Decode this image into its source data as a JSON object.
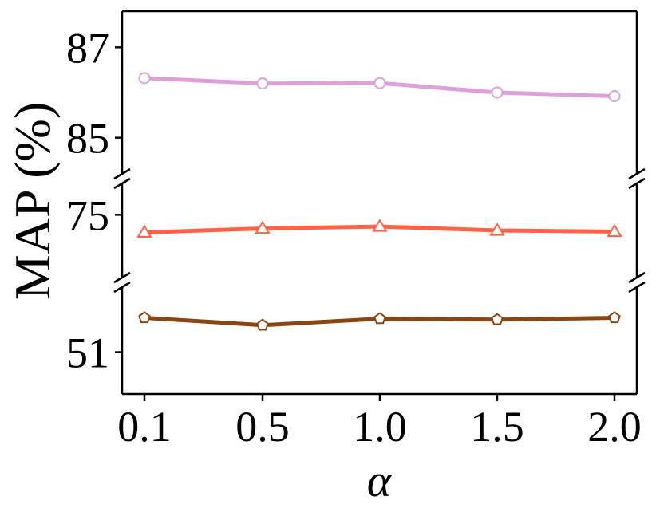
{
  "chart_data": {
    "type": "line",
    "broken_y_axis": true,
    "x": [
      "0.1",
      "0.5",
      "1.0",
      "1.5",
      "2.0"
    ],
    "xlabel": "α",
    "ylabel": "MAP (%)",
    "panels": [
      {
        "ylim": [
          84.2,
          87.8
        ],
        "yticks": [
          "87",
          "85"
        ]
      },
      {
        "ylim": [
          73.4,
          75.8
        ],
        "yticks": [
          "75"
        ]
      },
      {
        "ylim": [
          50.1,
          52.4
        ],
        "yticks": [
          "51"
        ]
      }
    ],
    "series": [
      {
        "color": "#DDA0DD",
        "marker": "circle",
        "panel": 0,
        "values": [
          86.32,
          86.2,
          86.21,
          86.0,
          85.92
        ]
      },
      {
        "color": "#FF6347",
        "marker": "triangle",
        "panel": 1,
        "values": [
          74.55,
          74.65,
          74.7,
          74.6,
          74.57
        ]
      },
      {
        "color": "#8B4513",
        "marker": "pentagon",
        "panel": 2,
        "values": [
          51.74,
          51.58,
          51.72,
          51.7,
          51.74
        ]
      }
    ],
    "grid": false
  }
}
